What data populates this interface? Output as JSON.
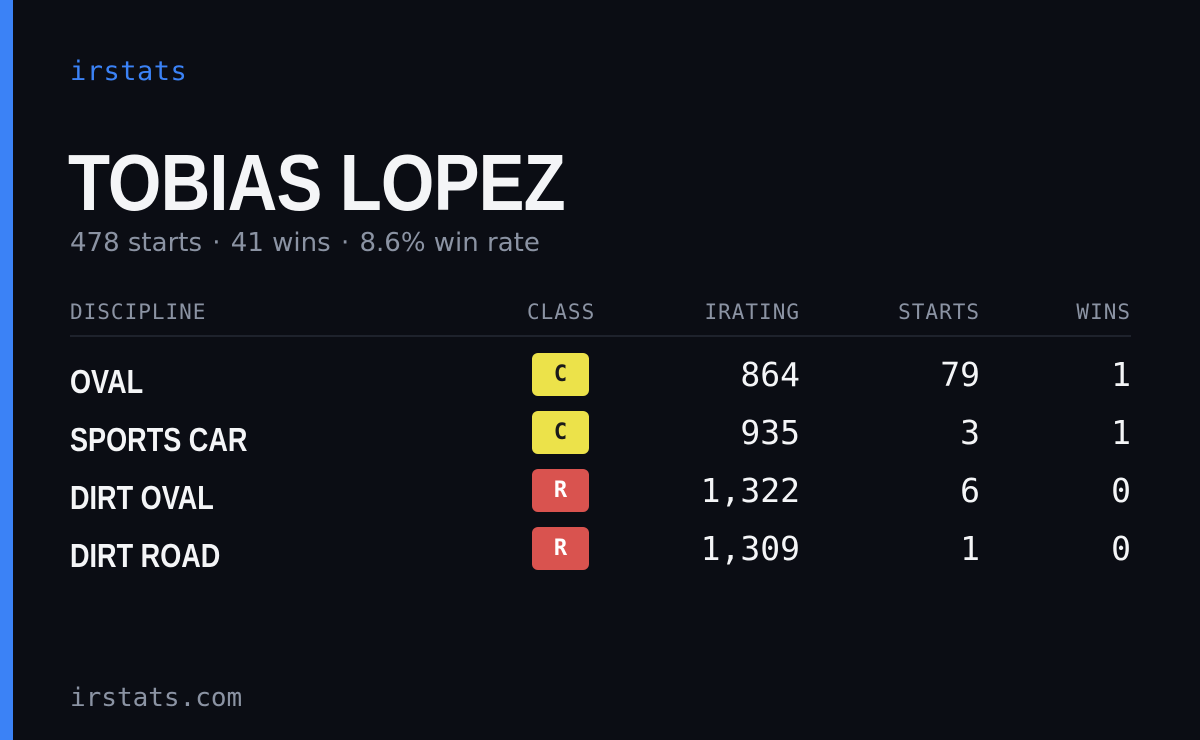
{
  "brand": "irstats",
  "driver": {
    "name": "TOBIAS LOPEZ",
    "starts": "478 starts",
    "wins": "41 wins",
    "win_rate": "8.6% win rate",
    "separator": "·"
  },
  "table": {
    "headers": {
      "discipline": "DISCIPLINE",
      "class": "CLASS",
      "irating": "IRATING",
      "starts": "STARTS",
      "wins": "WINS"
    },
    "rows": [
      {
        "discipline": "OVAL",
        "class": "C",
        "class_bg": "#ece24a",
        "class_fg": "#1a1a1a",
        "irating": "864",
        "starts": "79",
        "wins": "1"
      },
      {
        "discipline": "SPORTS CAR",
        "class": "C",
        "class_bg": "#ece24a",
        "class_fg": "#1a1a1a",
        "irating": "935",
        "starts": "3",
        "wins": "1"
      },
      {
        "discipline": "DIRT OVAL",
        "class": "R",
        "class_bg": "#d9534f",
        "class_fg": "#ffffff",
        "irating": "1,322",
        "starts": "6",
        "wins": "0"
      },
      {
        "discipline": "DIRT ROAD",
        "class": "R",
        "class_bg": "#d9534f",
        "class_fg": "#ffffff",
        "irating": "1,309",
        "starts": "1",
        "wins": "0"
      }
    ]
  },
  "footer": "irstats.com",
  "colors": {
    "accent": "#3b82f6",
    "background": "#0b0d14",
    "muted": "#8b93a3"
  }
}
